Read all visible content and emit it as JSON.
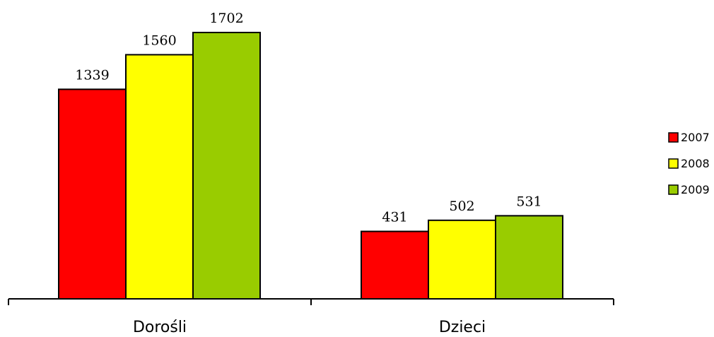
{
  "chart_data": {
    "type": "bar",
    "categories": [
      "Dorośli",
      "Dzieci"
    ],
    "series": [
      {
        "name": "2007",
        "color": "#ff0000",
        "values": [
          1339,
          431
        ]
      },
      {
        "name": "2008",
        "color": "#ffff00",
        "values": [
          1560,
          502
        ]
      },
      {
        "name": "2009",
        "color": "#99cc00",
        "values": [
          1702,
          531
        ]
      }
    ],
    "title": "",
    "xlabel": "",
    "ylabel": "",
    "ylim": [
      0,
      2000
    ],
    "grid": false,
    "legend": "right"
  }
}
